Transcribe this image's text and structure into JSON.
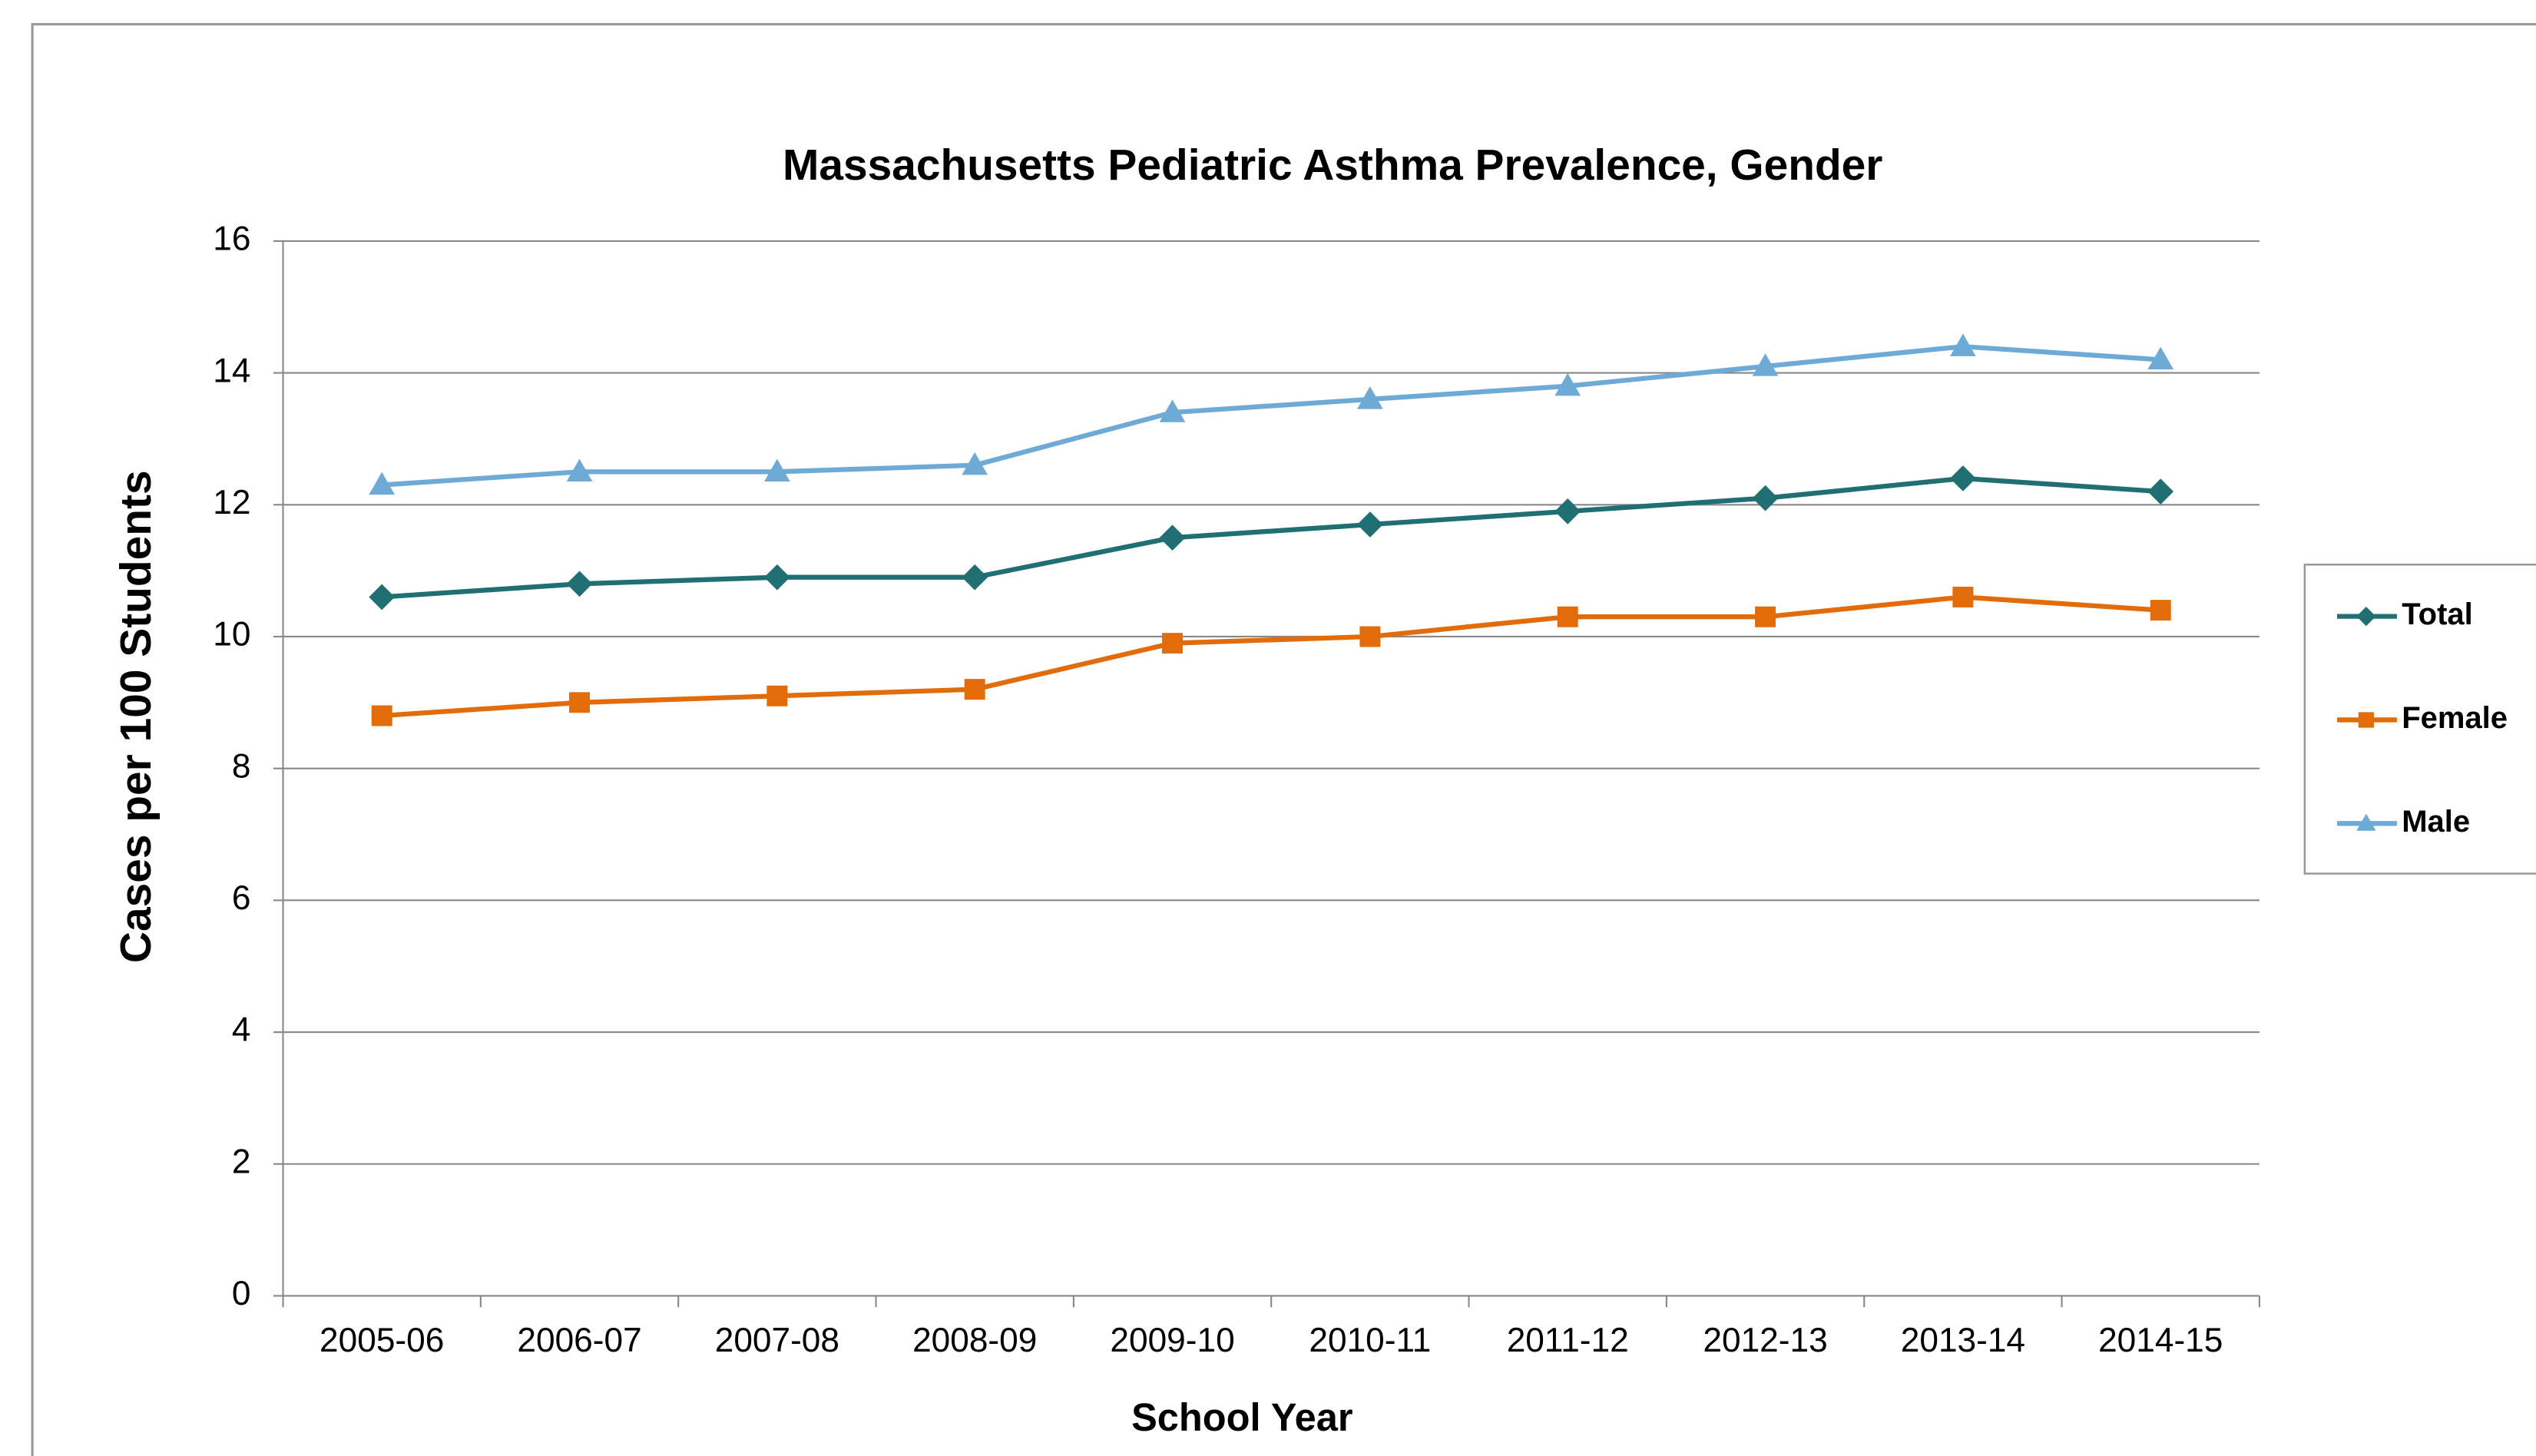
{
  "chart_data": {
    "type": "line",
    "title": "Massachusetts Pediatric Asthma Prevalence, Gender",
    "x_label": "School Year",
    "y_label": "Cases per 100 Students",
    "categories": [
      "2005-06",
      "2006-07",
      "2007-08",
      "2008-09",
      "2009-10",
      "2010-11",
      "2011-12",
      "2012-13",
      "2013-14",
      "2014-15"
    ],
    "series": [
      {
        "name": "Total",
        "color": "#1f6f73",
        "marker": "diamond",
        "values": [
          10.6,
          10.8,
          10.9,
          10.9,
          11.5,
          11.7,
          11.9,
          12.1,
          12.4,
          12.2
        ]
      },
      {
        "name": "Female",
        "color": "#e36c0a",
        "marker": "square",
        "values": [
          8.8,
          9.0,
          9.1,
          9.2,
          9.9,
          10.0,
          10.3,
          10.3,
          10.6,
          10.4
        ]
      },
      {
        "name": "Male",
        "color": "#6eaad6",
        "marker": "triangle",
        "values": [
          12.3,
          12.5,
          12.5,
          12.6,
          13.4,
          13.6,
          13.8,
          14.1,
          14.4,
          14.2
        ]
      }
    ],
    "ylim": [
      0,
      16
    ],
    "yticks": [
      0,
      2,
      4,
      6,
      8,
      10,
      12,
      14,
      16
    ],
    "grid": true,
    "legend": "right"
  }
}
